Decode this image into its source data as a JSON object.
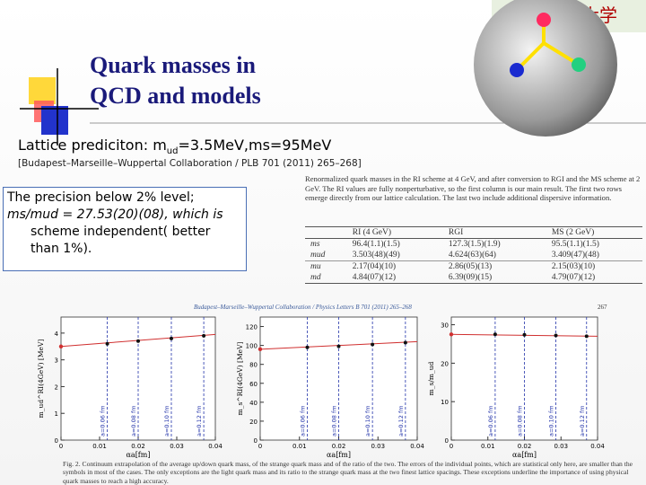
{
  "slide": {
    "logo_text": "范大学",
    "title_lines": [
      "Quark masses in",
      "QCD and models"
    ],
    "lattice_prefix": "Lattice prediciton: m",
    "lattice_sub": "ud",
    "lattice_suffix": "=3.5MeV,ms=95MeV",
    "citation": "[Budapest–Marseille–Wuppertal Collaboration / PLB 701 (2011) 265–268]",
    "box_lines": [
      "The precision below 2% level;",
      "ms/mud = 27.53(20)(08), which is",
      "scheme independent( better",
      "than 1%)."
    ]
  },
  "table": {
    "caption": "Renormalized quark masses in the RI scheme at 4 GeV, and after conversion to RGI and the MS scheme at 2 GeV. The RI values are fully nonperturbative, so the first column is our main result. The first two rows emerge directly from our lattice calculation. The last two include additional dispersive information.",
    "headers": [
      "RI (4 GeV)",
      "RGI",
      "MS (2 GeV)"
    ],
    "rows": [
      [
        "ms",
        "96.4(1.1)(1.5)",
        "127.3(1.5)(1.9)",
        "95.5(1.1)(1.5)"
      ],
      [
        "mud",
        "3.503(48)(49)",
        "4.624(63)(64)",
        "3.409(47)(48)"
      ],
      [
        "mu",
        "2.17(04)(10)",
        "2.86(05)(13)",
        "2.15(03)(10)"
      ],
      [
        "md",
        "4.84(07)(12)",
        "6.39(09)(15)",
        "4.79(07)(12)"
      ]
    ]
  },
  "paper_header": "Budapest–Marseille–Wuppertal Collaboration / Physics Letters B 701 (2011) 265–268",
  "page_number": "267",
  "plots": [
    {
      "ylabel": "m_ud^RI(4GeV) [MeV]",
      "xlabel": "αa[fm]",
      "ylim": [
        0,
        4.6
      ],
      "yticks": [
        0,
        1,
        2,
        3,
        4
      ],
      "xlim": [
        0,
        0.04
      ],
      "xticks": [
        0,
        0.01,
        0.02,
        0.03,
        0.04
      ],
      "vlines": [
        {
          "x": 0.012,
          "label": "a=0.06 fm"
        },
        {
          "x": 0.02,
          "label": "a=0.08 fm"
        },
        {
          "x": 0.0286,
          "label": "a=0.10 fm"
        },
        {
          "x": 0.037,
          "label": "a=0.12 fm"
        }
      ],
      "points": {
        "x": [
          0.012,
          0.02,
          0.0286,
          0.037
        ],
        "y": [
          3.6,
          3.7,
          3.8,
          3.9
        ]
      },
      "fit_y": [
        3.5,
        3.95
      ]
    },
    {
      "ylabel": "m_s^RI(4GeV) [MeV]",
      "xlabel": "αa[fm]",
      "ylim": [
        0,
        130
      ],
      "yticks": [
        0,
        20,
        40,
        60,
        80,
        100,
        120
      ],
      "xlim": [
        0,
        0.04
      ],
      "xticks": [
        0,
        0.01,
        0.02,
        0.03,
        0.04
      ],
      "vlines": [
        {
          "x": 0.012,
          "label": "a=0.06 fm"
        },
        {
          "x": 0.02,
          "label": "a=0.08 fm"
        },
        {
          "x": 0.0286,
          "label": "a=0.10 fm"
        },
        {
          "x": 0.037,
          "label": "a=0.12 fm"
        }
      ],
      "points": {
        "x": [
          0.012,
          0.02,
          0.0286,
          0.037
        ],
        "y": [
          98,
          99,
          101,
          103
        ]
      },
      "fit_y": [
        96,
        104
      ]
    },
    {
      "ylabel": "m_s/m_ud",
      "xlabel": "αa[fm]",
      "ylim": [
        0,
        32
      ],
      "yticks": [
        0,
        10,
        20,
        30
      ],
      "xlim": [
        0,
        0.04
      ],
      "xticks": [
        0,
        0.01,
        0.02,
        0.03,
        0.04
      ],
      "vlines": [
        {
          "x": 0.012,
          "label": "a=0.06 fm"
        },
        {
          "x": 0.02,
          "label": "a=0.08 fm"
        },
        {
          "x": 0.0286,
          "label": "a=0.10 fm"
        },
        {
          "x": 0.037,
          "label": "a=0.12 fm"
        }
      ],
      "points": {
        "x": [
          0.012,
          0.02,
          0.0286,
          0.037
        ],
        "y": [
          27.5,
          27.4,
          27.2,
          27.0
        ]
      },
      "fit_y": [
        27.5,
        27.0
      ]
    }
  ],
  "figure_caption": "Fig. 2. Continuum extrapolation of the average up/down quark mass, of the strange quark mass and of the ratio of the two. The errors of the individual points, which are statistical only here, are smaller than the symbols in most of the cases. The only exceptions are the light quark mass and its ratio to the strange quark mass at the two finest lattice spacings. These exceptions underline the importance of using physical quark masses to reach a high accuracy."
}
